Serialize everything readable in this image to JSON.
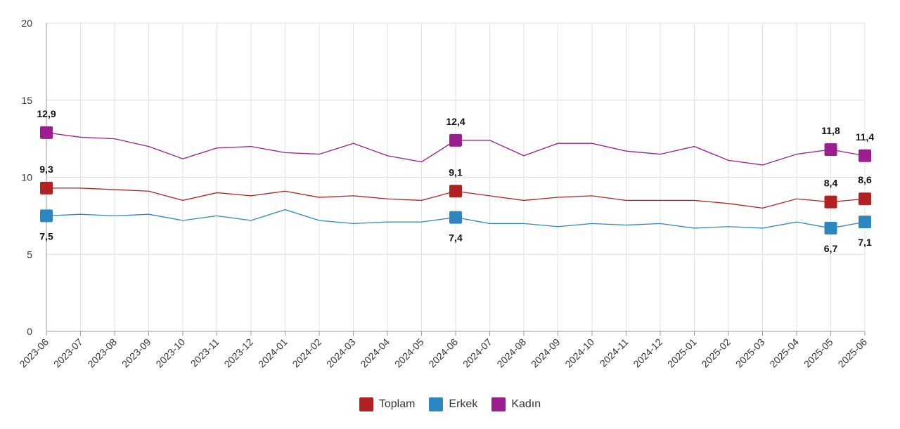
{
  "chart_data": {
    "type": "line",
    "title": "",
    "xlabel": "",
    "ylabel": "",
    "ylim": [
      0,
      20
    ],
    "yticks": [
      "0",
      "5",
      "10",
      "15",
      "20"
    ],
    "grid": true,
    "legend_position": "bottom-center",
    "categories": [
      "2023-06",
      "2023-07",
      "2023-08",
      "2023-09",
      "2023-10",
      "2023-11",
      "2023-12",
      "2024-01",
      "2024-02",
      "2024-03",
      "2024-04",
      "2024-05",
      "2024-06",
      "2024-07",
      "2024-08",
      "2024-09",
      "2024-10",
      "2024-11",
      "2024-12",
      "2025-01",
      "2025-02",
      "2025-03",
      "2025-04",
      "2025-05",
      "2025-06"
    ],
    "series": [
      {
        "name": "Toplam",
        "color": "#b22222",
        "values": [
          9.3,
          9.3,
          9.2,
          9.1,
          8.5,
          9.0,
          8.8,
          9.1,
          8.7,
          8.8,
          8.6,
          8.5,
          9.1,
          8.8,
          8.5,
          8.7,
          8.8,
          8.5,
          8.5,
          8.5,
          8.3,
          8.0,
          8.6,
          8.4,
          8.6
        ],
        "labels": [
          {
            "index": 0,
            "text": "9,3"
          },
          {
            "index": 12,
            "text": "9,1"
          },
          {
            "index": 23,
            "text": "8,4"
          },
          {
            "index": 24,
            "text": "8,6"
          }
        ],
        "label_side": "above"
      },
      {
        "name": "Erkek",
        "color": "#2e86c1",
        "values": [
          7.5,
          7.6,
          7.5,
          7.6,
          7.2,
          7.5,
          7.2,
          7.9,
          7.2,
          7.0,
          7.1,
          7.1,
          7.4,
          7.0,
          7.0,
          6.8,
          7.0,
          6.9,
          7.0,
          6.7,
          6.8,
          6.7,
          7.1,
          6.7,
          7.1
        ],
        "labels": [
          {
            "index": 0,
            "text": "7,5"
          },
          {
            "index": 12,
            "text": "7,4"
          },
          {
            "index": 23,
            "text": "6,7"
          },
          {
            "index": 24,
            "text": "7,1"
          }
        ],
        "label_side": "below"
      },
      {
        "name": "Kadın",
        "color": "#9b1f8f",
        "values": [
          12.9,
          12.6,
          12.5,
          12.0,
          11.2,
          11.9,
          12.0,
          11.6,
          11.5,
          12.2,
          11.4,
          11.0,
          12.4,
          12.4,
          11.4,
          12.2,
          12.2,
          11.7,
          11.5,
          12.0,
          11.1,
          10.8,
          11.5,
          11.8,
          11.4
        ],
        "labels": [
          {
            "index": 0,
            "text": "12,9"
          },
          {
            "index": 12,
            "text": "12,4"
          },
          {
            "index": 23,
            "text": "11,8"
          },
          {
            "index": 24,
            "text": "11,4"
          }
        ],
        "label_side": "above"
      }
    ]
  }
}
